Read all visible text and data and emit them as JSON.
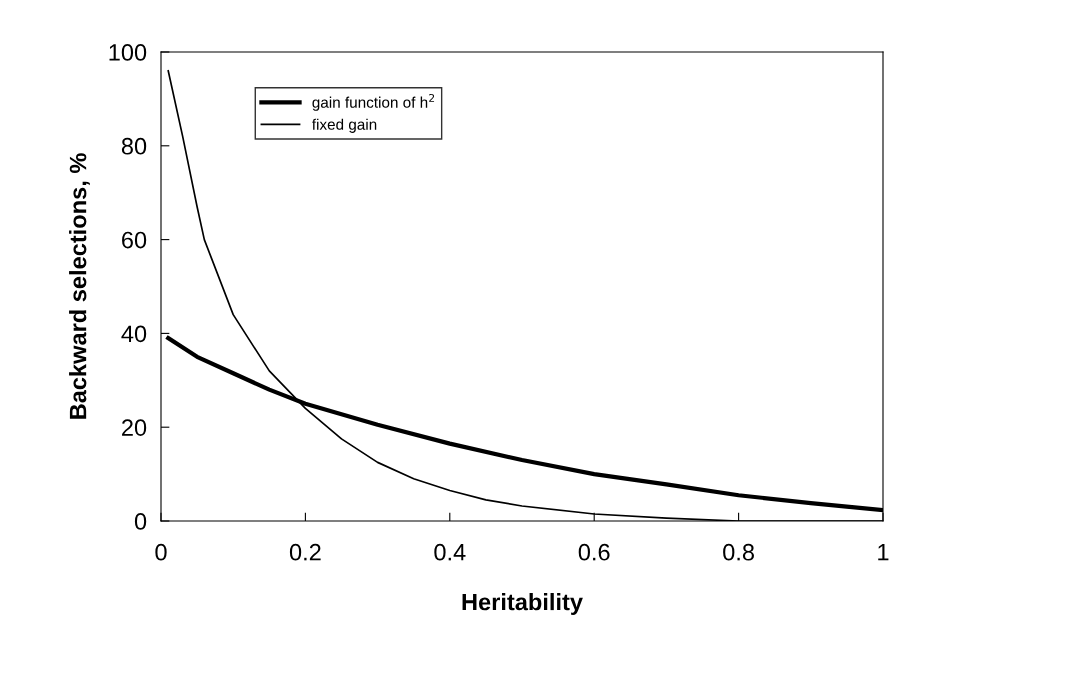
{
  "chart_data": {
    "type": "line",
    "xlabel": "Heritability",
    "ylabel": "Backward selections, %",
    "xlim": [
      0,
      1
    ],
    "ylim": [
      0,
      100
    ],
    "xticks": [
      0,
      0.2,
      0.4,
      0.6,
      0.8,
      1
    ],
    "yticks": [
      0,
      20,
      40,
      60,
      80,
      100
    ],
    "grid": false,
    "legend": "top left",
    "marker": "none",
    "series": [
      {
        "name": "gain function of h$^{2}$",
        "color": "#000000",
        "line_style": "solid",
        "x": [
          0.01,
          0.05,
          0.1,
          0.15,
          0.2,
          0.3,
          0.4,
          0.5,
          0.6,
          0.7,
          0.8,
          0.9,
          1.0
        ],
        "values": [
          39,
          35,
          31.5,
          28,
          25,
          20.5,
          16.5,
          13,
          10,
          7.8,
          5.5,
          3.8,
          2.3
        ]
      },
      {
        "name": "fixed gain",
        "color": "#000000",
        "line_style": "solid",
        "x": [
          0.01,
          0.03,
          0.05,
          0.06,
          0.07,
          0.1,
          0.15,
          0.2,
          0.25,
          0.3,
          0.35,
          0.4,
          0.45,
          0.5,
          0.6,
          0.7,
          0.8,
          0.9,
          1.0
        ],
        "values": [
          96,
          82,
          67,
          60,
          56,
          44,
          32,
          24,
          17.5,
          12.5,
          9,
          6.5,
          4.5,
          3.2,
          1.5,
          0.6,
          0,
          0,
          0
        ]
      }
    ]
  }
}
